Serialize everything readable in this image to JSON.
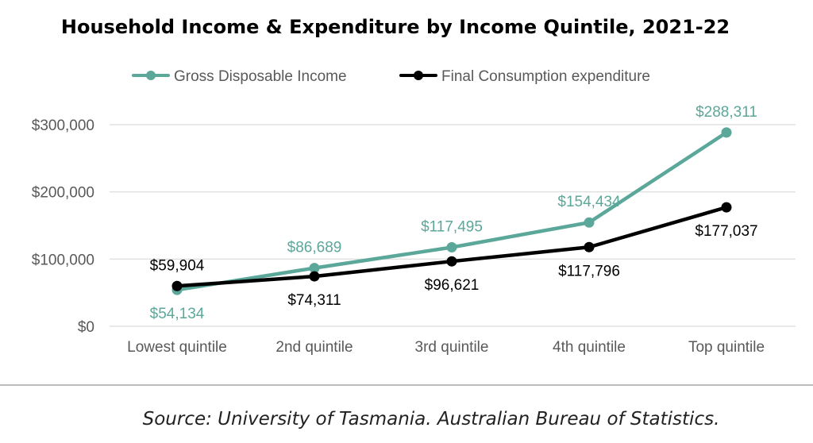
{
  "chart_data": {
    "type": "line",
    "title": "Household Income & Expenditure by Income Quintile, 2021-22",
    "categories": [
      "Lowest quintile",
      "2nd quintile",
      "3rd quintile",
      "4th quintile",
      "Top quintile"
    ],
    "series": [
      {
        "name": "Gross Disposable Income",
        "values": [
          54134,
          86689,
          117495,
          154434,
          288311
        ],
        "labels": [
          "$54,134",
          "$86,689",
          "$117,495",
          "$154,434",
          "$288,311"
        ],
        "color": "#5BA89A",
        "label_positions": [
          "below",
          "above",
          "above",
          "above",
          "above"
        ]
      },
      {
        "name": "Final Consumption expenditure",
        "values": [
          59904,
          74311,
          96621,
          117796,
          177037
        ],
        "labels": [
          "$59,904",
          "$74,311",
          "$96,621",
          "$117,796",
          "$177,037"
        ],
        "color": "#000000",
        "label_positions": [
          "above",
          "below",
          "below",
          "below",
          "below"
        ]
      }
    ],
    "y_ticks": [
      0,
      100000,
      200000,
      300000
    ],
    "y_tick_labels": [
      "$0",
      "$100,000",
      "$200,000",
      "$300,000"
    ],
    "ylim": [
      0,
      300000
    ],
    "xlabel": "",
    "ylabel": "",
    "grid": true,
    "legend_position": "top"
  },
  "source_note": "Source: University of Tasmania. Australian Bureau of Statistics."
}
